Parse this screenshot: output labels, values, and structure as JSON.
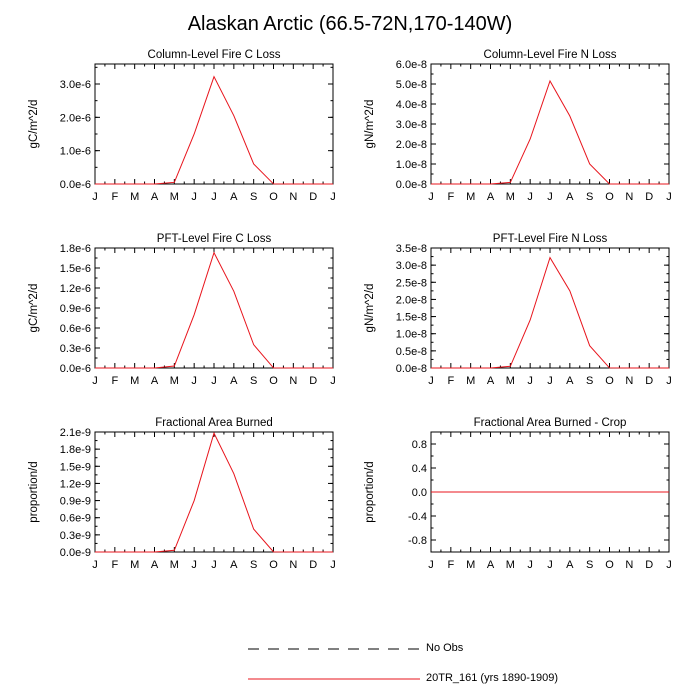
{
  "title": "Alaskan Arctic (66.5-72N,170-140W)",
  "months": [
    "J",
    "F",
    "M",
    "A",
    "M",
    "J",
    "J",
    "A",
    "S",
    "O",
    "N",
    "D",
    "J"
  ],
  "colors": {
    "model": "#e8141c",
    "obs": "#000000",
    "axis": "#000000"
  },
  "legend": {
    "obs_label": "No Obs",
    "model_label": "20TR_161 (yrs 1890-1909)"
  },
  "chart_data": [
    {
      "type": "line",
      "title": "Column-Level Fire C Loss",
      "ylabel": "gC/m^2/d",
      "ylim": [
        0,
        3.6e-06
      ],
      "yticks": [
        0,
        1e-06,
        2e-06,
        3e-06
      ],
      "yticklabels": [
        "0.0e-6",
        "1.0e-6",
        "2.0e-6",
        "3.0e-6"
      ],
      "yminor": 5e-07,
      "series": [
        {
          "name": "20TR_161 (yrs 1890-1909)",
          "values": [
            0,
            0,
            0,
            0,
            5e-08,
            1.5e-06,
            3.22e-06,
            2.05e-06,
            6e-07,
            2e-09,
            0,
            0,
            0
          ]
        }
      ]
    },
    {
      "type": "line",
      "title": "Column-Level Fire N Loss",
      "ylabel": "gN/m^2/d",
      "ylim": [
        0,
        6e-08
      ],
      "yticks": [
        0,
        1e-08,
        2e-08,
        3e-08,
        4e-08,
        5e-08,
        6e-08
      ],
      "yticklabels": [
        "0.0e-8",
        "1.0e-8",
        "2.0e-8",
        "3.0e-8",
        "4.0e-8",
        "5.0e-8",
        "6.0e-8"
      ],
      "yminor": 5e-09,
      "series": [
        {
          "name": "20TR_161 (yrs 1890-1909)",
          "values": [
            0,
            0,
            0,
            0,
            8e-10,
            2.25e-08,
            5.15e-08,
            3.4e-08,
            1e-08,
            3e-11,
            0,
            0,
            0
          ]
        }
      ]
    },
    {
      "type": "line",
      "title": "PFT-Level Fire C Loss",
      "ylabel": "gC/m^2/d",
      "ylim": [
        0,
        1.8e-06
      ],
      "yticks": [
        0,
        3e-07,
        6e-07,
        9e-07,
        1.2e-06,
        1.5e-06,
        1.8e-06
      ],
      "yticklabels": [
        "0.0e-6",
        "0.3e-6",
        "0.6e-6",
        "0.9e-6",
        "1.2e-6",
        "1.5e-6",
        "1.8e-6"
      ],
      "yminor": 1.5e-07,
      "series": [
        {
          "name": "20TR_161 (yrs 1890-1909)",
          "values": [
            0,
            0,
            0,
            0,
            3e-08,
            8e-07,
            1.73e-06,
            1.15e-06,
            3.5e-07,
            1e-09,
            0,
            0,
            0
          ]
        }
      ]
    },
    {
      "type": "line",
      "title": "PFT-Level Fire N Loss",
      "ylabel": "gN/m^2/d",
      "ylim": [
        0,
        3.5e-08
      ],
      "yticks": [
        0,
        5e-09,
        1e-08,
        1.5e-08,
        2e-08,
        2.5e-08,
        3e-08,
        3.5e-08
      ],
      "yticklabels": [
        "0.0e-8",
        "0.5e-8",
        "1.0e-8",
        "1.5e-8",
        "2.0e-8",
        "2.5e-8",
        "3.0e-8",
        "3.5e-8"
      ],
      "yminor": 2.5e-09,
      "series": [
        {
          "name": "20TR_161 (yrs 1890-1909)",
          "values": [
            0,
            0,
            0,
            0,
            5e-10,
            1.4e-08,
            3.22e-08,
            2.25e-08,
            6.5e-09,
            2e-11,
            0,
            0,
            0
          ]
        }
      ]
    },
    {
      "type": "line",
      "title": "Fractional Area Burned",
      "ylabel": "proportion/d",
      "ylim": [
        0,
        2.1e-09
      ],
      "yticks": [
        0,
        3e-10,
        6e-10,
        9e-10,
        1.2e-09,
        1.5e-09,
        1.8e-09,
        2.1e-09
      ],
      "yticklabels": [
        "0.0e-9",
        "0.3e-9",
        "0.6e-9",
        "0.9e-9",
        "1.2e-9",
        "1.5e-9",
        "1.8e-9",
        "2.1e-9"
      ],
      "yminor": 1.5e-10,
      "series": [
        {
          "name": "20TR_161 (yrs 1890-1909)",
          "values": [
            0,
            0,
            0,
            0,
            3e-11,
            9e-10,
            2.08e-09,
            1.37e-09,
            4e-10,
            2e-12,
            0,
            0,
            0
          ]
        }
      ]
    },
    {
      "type": "line",
      "title": "Fractional Area Burned - Crop",
      "ylabel": "proportion/d",
      "ylim": [
        -1,
        1
      ],
      "yticks": [
        -0.8,
        -0.4,
        0,
        0.4,
        0.8
      ],
      "yticklabels": [
        "-0.8",
        "-0.4",
        "0.0",
        "0.4",
        "0.8"
      ],
      "yminor": 0.2,
      "series": [
        {
          "name": "20TR_161 (yrs 1890-1909)",
          "values": [
            0,
            0,
            0,
            0,
            0,
            0,
            0,
            0,
            0,
            0,
            0,
            0,
            0
          ]
        }
      ]
    }
  ]
}
